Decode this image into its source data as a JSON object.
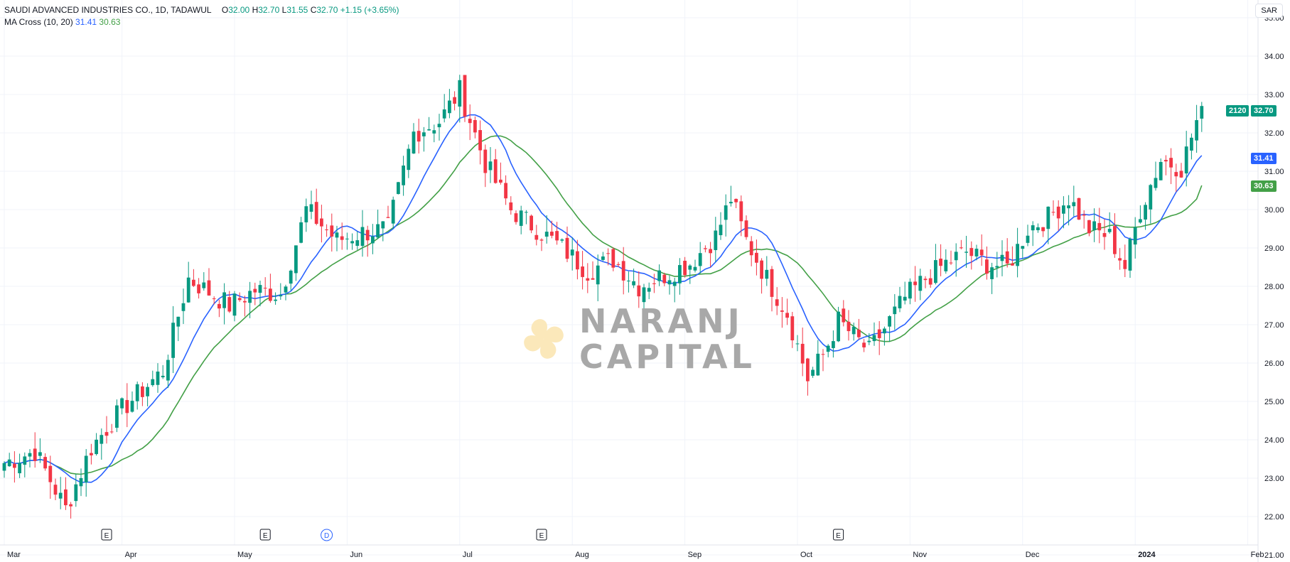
{
  "legend": {
    "symbol": "SAUDI ADVANCED INDUSTRIES CO., 1D, TADAWUL",
    "o_label": "O",
    "o": "32.00",
    "h_label": "H",
    "h": "32.70",
    "l_label": "L",
    "l": "31.55",
    "c_label": "C",
    "c": "32.70",
    "change": "+1.15 (+3.65%)",
    "ma_name": "MA Cross (10, 20)",
    "ma_fast": "31.41",
    "ma_slow": "30.63"
  },
  "currency": "SAR",
  "badges": {
    "volume": "2120",
    "last": "32.70",
    "ma_fast": "31.41",
    "ma_slow": "30.63"
  },
  "watermark": {
    "line1": "NARANJ",
    "line2": "CAPITAL"
  },
  "colors": {
    "up": "#089981",
    "down": "#f23645",
    "ma_fast": "#2962ff",
    "ma_slow": "#43a047",
    "grid": "#f0f3fa"
  },
  "chart_data": {
    "type": "candlestick",
    "title": "SAUDI ADVANCED INDUSTRIES CO.",
    "ylim": [
      21.0,
      35.0
    ],
    "y_ticks": [
      "35.00",
      "34.00",
      "33.00",
      "32.00",
      "31.00",
      "30.00",
      "29.00",
      "28.00",
      "27.00",
      "26.00",
      "25.00",
      "24.00",
      "23.00",
      "22.00",
      "21.00"
    ],
    "x_ticks": [
      {
        "label": "Mar",
        "pos": 0
      },
      {
        "label": "Apr",
        "pos": 23
      },
      {
        "label": "May",
        "pos": 45
      },
      {
        "label": "Jun",
        "pos": 67
      },
      {
        "label": "Jul",
        "pos": 89
      },
      {
        "label": "Aug",
        "pos": 111
      },
      {
        "label": "Sep",
        "pos": 133
      },
      {
        "label": "Oct",
        "pos": 155
      },
      {
        "label": "Nov",
        "pos": 177
      },
      {
        "label": "Dec",
        "pos": 199
      },
      {
        "label": "2024",
        "pos": 221
      },
      {
        "label": "Feb",
        "pos": 243
      },
      {
        "label": "Mar",
        "pos": 265
      }
    ],
    "events": [
      {
        "label": "E",
        "pos": 20
      },
      {
        "label": "E",
        "pos": 51
      },
      {
        "label": "D",
        "pos": 63
      },
      {
        "label": "E",
        "pos": 105
      },
      {
        "label": "E",
        "pos": 163
      }
    ],
    "anchors": [
      [
        0,
        23.4
      ],
      [
        6,
        23.7
      ],
      [
        12,
        22.2
      ],
      [
        17,
        23.8
      ],
      [
        23,
        24.8
      ],
      [
        31,
        25.8
      ],
      [
        36,
        28.2
      ],
      [
        44,
        27.5
      ],
      [
        49,
        27.9
      ],
      [
        54,
        27.8
      ],
      [
        59,
        30.0
      ],
      [
        65,
        29.2
      ],
      [
        70,
        29.4
      ],
      [
        75,
        29.5
      ],
      [
        80,
        32.0
      ],
      [
        85,
        32.3
      ],
      [
        89,
        33.1
      ],
      [
        94,
        31.2
      ],
      [
        99,
        30.0
      ],
      [
        104,
        29.5
      ],
      [
        109,
        29.0
      ],
      [
        114,
        28.4
      ],
      [
        119,
        28.7
      ],
      [
        124,
        28.0
      ],
      [
        129,
        28.3
      ],
      [
        134,
        28.6
      ],
      [
        139,
        29.3
      ],
      [
        142,
        30.3
      ],
      [
        145,
        29.2
      ],
      [
        149,
        28.2
      ],
      [
        153,
        27.3
      ],
      [
        157,
        25.6
      ],
      [
        160,
        26.2
      ],
      [
        163,
        27.1
      ],
      [
        166,
        26.7
      ],
      [
        169,
        26.3
      ],
      [
        172,
        26.9
      ],
      [
        176,
        27.7
      ],
      [
        180,
        28.2
      ],
      [
        184,
        28.6
      ],
      [
        188,
        28.9
      ],
      [
        192,
        28.6
      ],
      [
        196,
        28.5
      ],
      [
        200,
        29.5
      ],
      [
        204,
        29.8
      ],
      [
        208,
        30.3
      ],
      [
        212,
        29.5
      ],
      [
        216,
        29.3
      ],
      [
        219,
        28.5
      ],
      [
        222,
        30.0
      ],
      [
        226,
        31.3
      ],
      [
        230,
        31.1
      ],
      [
        232,
        31.9
      ],
      [
        234,
        32.7
      ]
    ],
    "ma_fast_last": 31.41,
    "ma_slow_last": 30.63,
    "last_close": 32.7,
    "last_volume": 2120
  }
}
